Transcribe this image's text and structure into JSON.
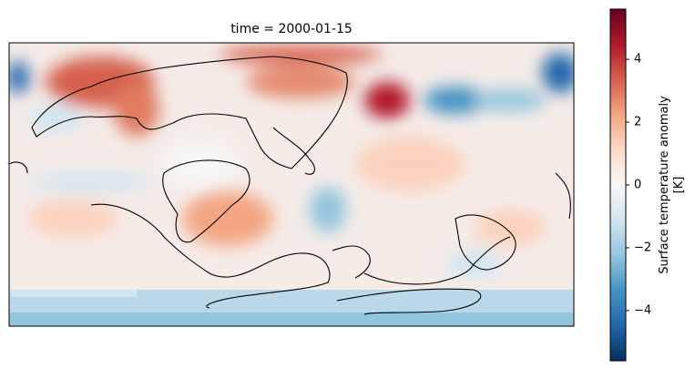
{
  "title": "time = 2000-01-15",
  "map": {
    "variable": "Surface temperature anomaly",
    "colormap": "RdBu_r",
    "projection": "PlateCarree",
    "coastlines": true
  },
  "colorbar": {
    "label_line1": "Surface temperature anomaly",
    "label_line2": "[K]",
    "range": [
      -5.6,
      5.6
    ],
    "ticks": [
      {
        "value": 4,
        "label": "4"
      },
      {
        "value": 2,
        "label": "2"
      },
      {
        "value": 0,
        "label": "0"
      },
      {
        "value": -2,
        "label": "−2"
      },
      {
        "value": -4,
        "label": "−4"
      }
    ],
    "colors": [
      "#053061",
      "#2166ac",
      "#4393c3",
      "#92c5de",
      "#d1e5f0",
      "#f7f7f7",
      "#fddbc7",
      "#f4a582",
      "#d6604d",
      "#b2182b",
      "#67001f"
    ]
  }
}
